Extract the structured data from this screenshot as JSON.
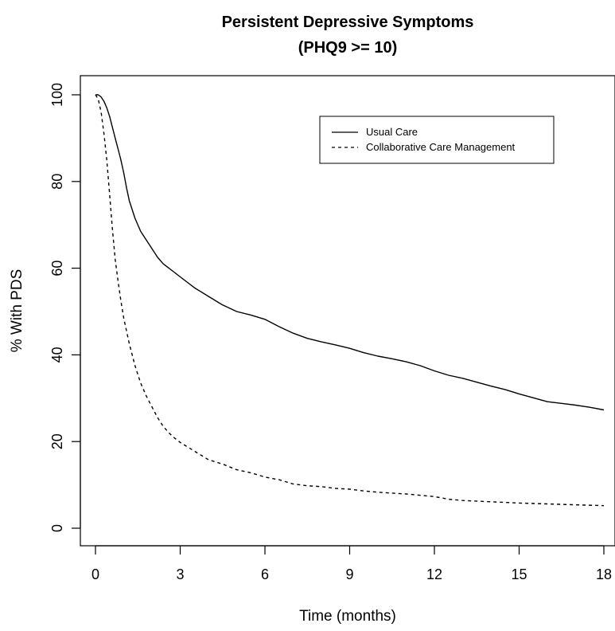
{
  "chart_data": {
    "type": "line",
    "title": [
      "Persistent Depressive Symptoms",
      "(PHQ9 >= 10)"
    ],
    "xlabel": "Time (months)",
    "ylabel": "% With PDS",
    "xlim": [
      0,
      18
    ],
    "ylim": [
      0,
      100
    ],
    "xticks": [
      0,
      3,
      6,
      9,
      12,
      15,
      18
    ],
    "yticks": [
      0,
      20,
      40,
      60,
      80,
      100
    ],
    "grid": false,
    "legend_position": "top-right",
    "series": [
      {
        "name": "Usual Care",
        "style": "solid",
        "color": "#000000",
        "x": [
          0,
          0.1,
          0.2,
          0.3,
          0.4,
          0.5,
          0.6,
          0.7,
          0.8,
          0.9,
          1.0,
          1.1,
          1.2,
          1.4,
          1.6,
          1.8,
          2.0,
          2.2,
          2.4,
          2.6,
          2.8,
          3.0,
          3.5,
          4.0,
          4.5,
          5.0,
          5.5,
          6.0,
          6.5,
          7.0,
          7.5,
          8.0,
          8.5,
          9.0,
          9.5,
          10.0,
          10.5,
          11.0,
          11.5,
          12.0,
          12.5,
          13.0,
          13.5,
          14.0,
          14.5,
          15.0,
          15.5,
          16.0,
          16.5,
          17.0,
          17.5,
          18.0
        ],
        "y": [
          100,
          100,
          99.5,
          98.5,
          97,
          95,
          92.5,
          90,
          87.5,
          85,
          82,
          78.5,
          75.5,
          71.5,
          68.5,
          66.5,
          64.5,
          62.5,
          61,
          60,
          59,
          58,
          55.5,
          53.5,
          51.5,
          50,
          49.2,
          48.2,
          46.5,
          45,
          43.8,
          43,
          42.3,
          41.5,
          40.5,
          39.7,
          39.1,
          38.4,
          37.5,
          36.3,
          35.3,
          34.6,
          33.7,
          32.8,
          32,
          31,
          30.1,
          29.2,
          28.8,
          28.4,
          27.9,
          27.3
        ]
      },
      {
        "name": "Collaborative Care Management",
        "style": "dashed",
        "color": "#000000",
        "x": [
          0,
          0.1,
          0.2,
          0.3,
          0.4,
          0.5,
          0.6,
          0.7,
          0.8,
          0.9,
          1.0,
          1.2,
          1.4,
          1.6,
          1.8,
          2.0,
          2.2,
          2.4,
          2.6,
          2.8,
          3.0,
          3.5,
          4.0,
          4.5,
          5.0,
          5.5,
          6.0,
          6.5,
          7.0,
          7.5,
          8.0,
          8.5,
          9.0,
          9.5,
          10.0,
          11.0,
          12.0,
          12.5,
          13.0,
          14.0,
          15.0,
          16.0,
          17.0,
          18.0
        ],
        "y": [
          100,
          99,
          96,
          91,
          85,
          77,
          69,
          62,
          57,
          52.5,
          48.5,
          42.5,
          37.5,
          33.5,
          30.5,
          28,
          25.5,
          23.5,
          22,
          20.8,
          19.8,
          17.8,
          15.8,
          14.8,
          13.5,
          12.8,
          11.8,
          11.2,
          10.2,
          9.8,
          9.6,
          9.2,
          9.0,
          8.6,
          8.3,
          7.9,
          7.3,
          6.7,
          6.4,
          6.1,
          5.8,
          5.6,
          5.4,
          5.2
        ]
      }
    ]
  }
}
